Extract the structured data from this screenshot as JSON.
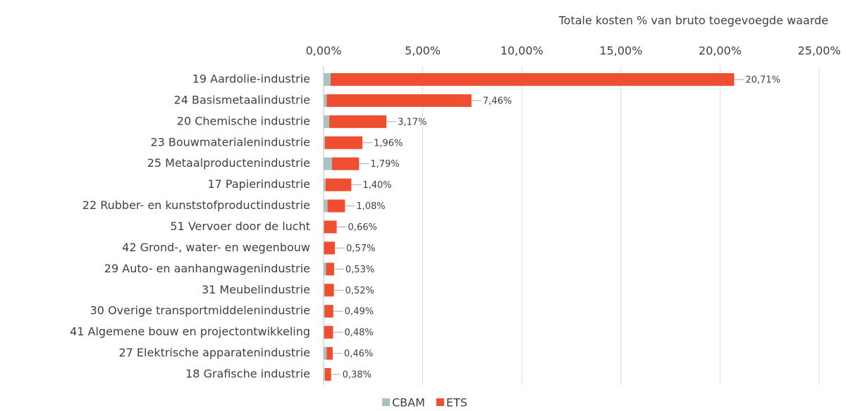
{
  "chart_data": {
    "type": "stacked_bar_horizontal",
    "title": "Totale kosten % van bruto toegevoegde waarde",
    "categories": [
      "19 Aardolie-industrie",
      "24 Basismetaalindustrie",
      "20 Chemische industrie",
      "23 Bouwmaterialenindustrie",
      "25 Metaalproductenindustrie",
      "17 Papierindustrie",
      "22 Rubber- en kunststofproductindustrie",
      "51 Vervoer door de lucht",
      "42 Grond-, water-  en wegenbouw",
      "29 Auto- en aanhangwagenindustrie",
      "31 Meubelindustrie",
      "30 Overige transportmiddelenindustrie",
      "41 Algemene bouw en projectontwikkeling",
      "27 Elektrische apparatenindustrie",
      "18 Grafische industrie"
    ],
    "series": [
      {
        "name": "CBAM",
        "color": "#a8c4c2",
        "values": [
          0.35,
          0.15,
          0.28,
          0.07,
          0.42,
          0.1,
          0.2,
          0.02,
          0.02,
          0.12,
          0.05,
          0.05,
          0.03,
          0.15,
          0.07
        ]
      },
      {
        "name": "ETS",
        "color": "#f04e30",
        "values": [
          20.36,
          7.31,
          2.89,
          1.89,
          1.37,
          1.3,
          0.88,
          0.64,
          0.55,
          0.41,
          0.47,
          0.44,
          0.45,
          0.31,
          0.31
        ]
      }
    ],
    "totals": {
      "values": [
        20.71,
        7.46,
        3.17,
        1.96,
        1.79,
        1.4,
        1.08,
        0.66,
        0.57,
        0.53,
        0.52,
        0.49,
        0.48,
        0.46,
        0.38
      ],
      "value_labels": [
        "20,71%",
        "7,46%",
        "3,17%",
        "1,96%",
        "1,79%",
        "1,40%",
        "1,08%",
        "0,66%",
        "0,57%",
        "0,53%",
        "0,52%",
        "0,49%",
        "0,48%",
        "0,46%",
        "0,38%"
      ]
    },
    "xlim": [
      0,
      25
    ],
    "xticks": [
      {
        "value": 0,
        "label": "0,00%"
      },
      {
        "value": 5,
        "label": "5,00%"
      },
      {
        "value": 10,
        "label": "10,00%"
      },
      {
        "value": 15,
        "label": "15,00%"
      },
      {
        "value": 20,
        "label": "20,00%"
      },
      {
        "value": 25,
        "label": "25,00%"
      }
    ],
    "grid": true,
    "legend": "bottom"
  }
}
